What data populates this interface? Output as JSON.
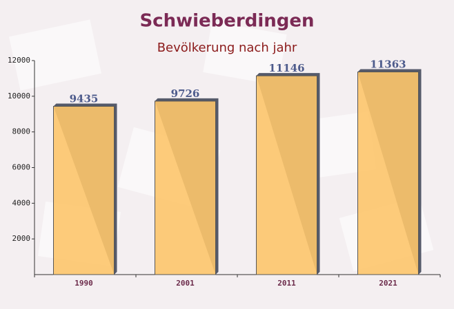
{
  "chart_data": {
    "type": "bar",
    "title": "Schwieberdingen",
    "subtitle": "Bevölkerung nach jahr",
    "categories": [
      "1990",
      "2001",
      "2011",
      "2021"
    ],
    "values": [
      9435,
      9726,
      11146,
      11363
    ],
    "color": "#fdc56b",
    "ylim": [
      0,
      12000
    ],
    "yticks": [
      2000,
      4000,
      6000,
      8000,
      10000,
      12000
    ]
  }
}
